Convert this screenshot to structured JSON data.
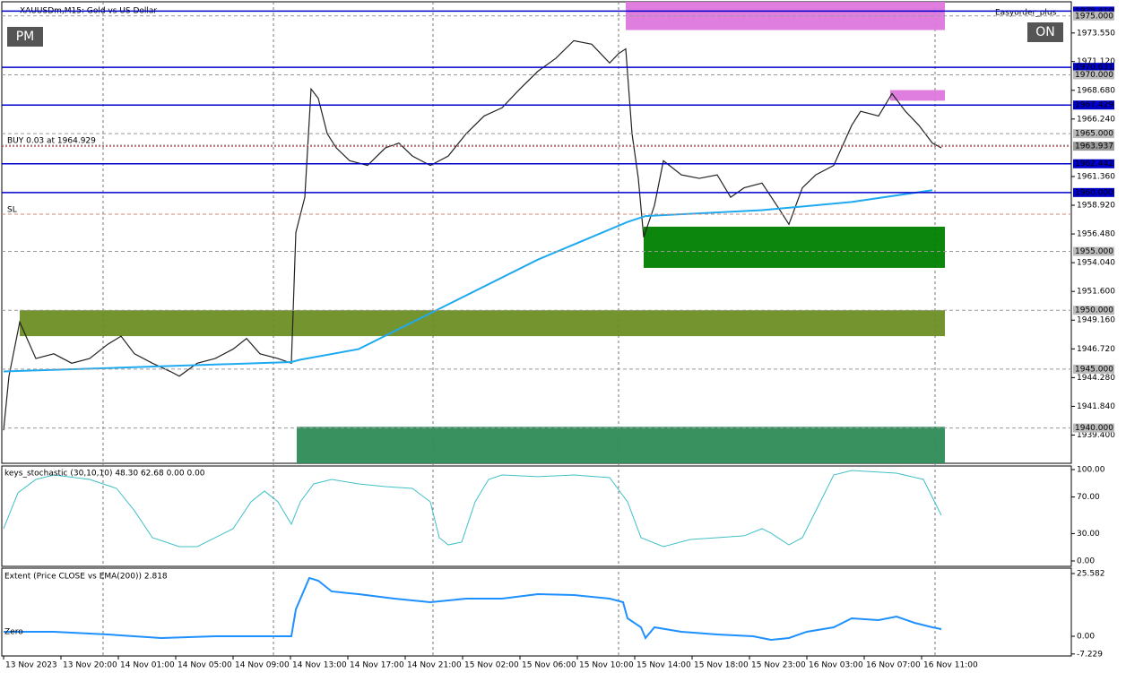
{
  "chart_data": {
    "type": "line",
    "title": "XAUUSDm,M15:  Gold vs US Dollar",
    "buttons": [
      "PM",
      "ON"
    ],
    "expert": "Easyorder_plus",
    "order_label": "BUY 0.03 at 1964.929",
    "sl_label": "SL",
    "xlim": [
      -0.5,
      297.75
    ],
    "xticks": [
      {
        "value": 0,
        "label": "13 Nov 2023"
      },
      {
        "value": 16,
        "label": "13 Nov 20:00"
      },
      {
        "value": 32,
        "label": "14 Nov 01:00"
      },
      {
        "value": 48,
        "label": "14 Nov 05:00"
      },
      {
        "value": 64,
        "label": "14 Nov 09:00"
      },
      {
        "value": 80,
        "label": "14 Nov 13:00"
      },
      {
        "value": 96,
        "label": "14 Nov 17:00"
      },
      {
        "value": 112,
        "label": "14 Nov 21:00"
      },
      {
        "value": 128,
        "label": "15 Nov 02:00"
      },
      {
        "value": 144,
        "label": "15 Nov 06:00"
      },
      {
        "value": 160,
        "label": "15 Nov 10:00"
      },
      {
        "value": 176,
        "label": "15 Nov 14:00"
      },
      {
        "value": 192,
        "label": "15 Nov 18:00"
      },
      {
        "value": 208,
        "label": "15 Nov 23:00"
      },
      {
        "value": 224,
        "label": "16 Nov 03:00"
      },
      {
        "value": 240,
        "label": "16 Nov 07:00"
      },
      {
        "value": 256,
        "label": "16 Nov 11:00"
      }
    ],
    "ylim": [
      1937.0,
      1976.2
    ],
    "yticks": [
      {
        "value": 1973.55,
        "label": "1973.550"
      },
      {
        "value": 1971.12,
        "label": "1971.120"
      },
      {
        "value": 1968.68,
        "label": "1968.680"
      },
      {
        "value": 1966.24,
        "label": "1966.240"
      },
      {
        "value": 1961.36,
        "label": "1961.360"
      },
      {
        "value": 1958.92,
        "label": "1958.920"
      },
      {
        "value": 1956.48,
        "label": "1956.480"
      },
      {
        "value": 1954.04,
        "label": "1954.040"
      },
      {
        "value": 1951.6,
        "label": "1951.600"
      },
      {
        "value": 1949.16,
        "label": "1949.160"
      },
      {
        "value": 1946.72,
        "label": "1946.720"
      },
      {
        "value": 1944.28,
        "label": "1944.280"
      },
      {
        "value": 1941.84,
        "label": "1941.840"
      },
      {
        "value": 1939.4,
        "label": "1939.400"
      }
    ],
    "levels": [
      {
        "value": 1975.41,
        "label": "1975.410",
        "kind": "solid"
      },
      {
        "value": 1975.0,
        "label": "1975.000",
        "kind": "dashed"
      },
      {
        "value": 1970.631,
        "label": "1970.631",
        "kind": "solid"
      },
      {
        "value": 1970.0,
        "label": "1970.000",
        "kind": "dashed"
      },
      {
        "value": 1967.429,
        "label": "1967.429",
        "kind": "solid"
      },
      {
        "value": 1965.0,
        "label": "1965.000",
        "kind": "dashed"
      },
      {
        "value": 1963.937,
        "label": "1963.937",
        "kind": "current"
      },
      {
        "value": 1962.442,
        "label": "1962.442",
        "kind": "solid"
      },
      {
        "value": 1960.0,
        "label": "1960.000",
        "kind": "solid"
      },
      {
        "value": 1955.0,
        "label": "1955.000",
        "kind": "dashed"
      },
      {
        "value": 1950.0,
        "label": "1950.000",
        "kind": "dashed"
      },
      {
        "value": 1945.0,
        "label": "1945.000",
        "kind": "dashed"
      },
      {
        "value": 1940.0,
        "label": "1940.000",
        "kind": "dashed"
      }
    ],
    "zones": [
      {
        "x": [
          173.5,
          262.5
        ],
        "range": [
          1973.8,
          1976.2
        ],
        "color": "#dd77dd"
      },
      {
        "x": [
          247.25,
          262.5
        ],
        "range": [
          1967.8,
          1968.7
        ],
        "color": "#dd77dd"
      },
      {
        "x": [
          178.5,
          262.5
        ],
        "range": [
          1953.6,
          1957.1
        ],
        "color": "#008000"
      },
      {
        "x": [
          4.5,
          262.5
        ],
        "range": [
          1947.8,
          1950.0
        ],
        "color": "#6b8e23"
      },
      {
        "x": [
          81.75,
          262.5
        ],
        "range": [
          1937.0,
          1940.1
        ],
        "color": "#2e8b57"
      }
    ],
    "series": [
      {
        "color": "#222222",
        "x": [
          0,
          1.5,
          4.5,
          9,
          14,
          19,
          24,
          29,
          32.75,
          36.5,
          41.5,
          46.5,
          49,
          54,
          59,
          64,
          67.75,
          71.5,
          76.5,
          80.25,
          81.5,
          84,
          85.75,
          87.75,
          90.25,
          92.75,
          96.5,
          101.5,
          106.5,
          110.25,
          114,
          119,
          124,
          129,
          134,
          139,
          144,
          149,
          154,
          159,
          164,
          169,
          171.5,
          173.5,
          175.25,
          177,
          178.5,
          181.5,
          184,
          189,
          194,
          199,
          202.75,
          206.5,
          211.5,
          216.5,
          219,
          222.75,
          226.5,
          231.5,
          236.5,
          239,
          244,
          247.75,
          251.5,
          255.25,
          259,
          261.5
        ],
        "values": [
          1939.8,
          1944.4,
          1949.0,
          1945.9,
          1946.3,
          1945.5,
          1945.9,
          1947.1,
          1947.8,
          1946.3,
          1945.5,
          1944.8,
          1944.4,
          1945.5,
          1945.9,
          1946.7,
          1947.6,
          1946.3,
          1945.9,
          1945.5,
          1956.6,
          1959.6,
          1968.8,
          1968.0,
          1965.0,
          1963.8,
          1962.7,
          1962.3,
          1963.8,
          1964.2,
          1963.1,
          1962.3,
          1963.1,
          1965.0,
          1966.5,
          1967.2,
          1968.8,
          1970.3,
          1971.4,
          1972.9,
          1972.6,
          1971.0,
          1971.8,
          1972.2,
          1965.0,
          1961.2,
          1956.2,
          1958.9,
          1962.7,
          1961.5,
          1961.2,
          1961.5,
          1959.6,
          1960.4,
          1960.8,
          1958.5,
          1957.3,
          1960.4,
          1961.5,
          1962.3,
          1965.7,
          1966.9,
          1966.5,
          1968.4,
          1966.9,
          1965.7,
          1964.2,
          1963.8
        ]
      },
      {
        "color": "#1eaaf0",
        "x": [
          0,
          80.25,
          82.75,
          99,
          124,
          149,
          174,
          179,
          211.5,
          236.5,
          259
        ],
        "values": [
          1944.8,
          1945.6,
          1945.8,
          1946.7,
          1950.5,
          1954.3,
          1957.5,
          1958.0,
          1958.5,
          1959.2,
          1960.2
        ]
      }
    ],
    "stochastic": {
      "title": "keys_stochastic (30,10,10) 48.30 62.68 0.00 0.00",
      "color": "#40c0c8",
      "ylim": [
        -5.9,
        103.9
      ],
      "yticks": [
        {
          "value": 100,
          "label": "100.00"
        },
        {
          "value": 70,
          "label": "70.00"
        },
        {
          "value": 30,
          "label": "30.00"
        },
        {
          "value": 0,
          "label": "0.00"
        }
      ],
      "x": [
        0,
        4,
        9,
        14,
        24,
        31.5,
        36.5,
        41.5,
        49,
        54,
        59,
        64,
        69,
        72.75,
        76.5,
        80.25,
        82.75,
        86.5,
        91.5,
        99,
        106.5,
        114,
        119,
        121.5,
        124,
        127.75,
        131.5,
        135.25,
        139,
        149,
        159,
        169,
        174,
        177.75,
        184,
        191.5,
        199,
        206.5,
        211.5,
        214,
        219,
        222.75,
        226.5,
        231.5,
        236.5,
        249,
        256.5,
        261.5
      ],
      "values": [
        35.3,
        74.5,
        89.2,
        94.1,
        89.2,
        79.4,
        54.9,
        25.5,
        15.7,
        15.7,
        25.5,
        35.3,
        64.7,
        76.5,
        64.7,
        40.2,
        64.7,
        84.3,
        89.2,
        84.3,
        81.4,
        79.4,
        64.7,
        25.5,
        17.6,
        20.6,
        64.7,
        89.2,
        94.1,
        92.2,
        94.1,
        91.2,
        64.7,
        25.5,
        15.7,
        23.5,
        25.5,
        27.5,
        35.3,
        30.4,
        17.6,
        25.5,
        54.9,
        94.1,
        99.0,
        96.1,
        89.2,
        50.0
      ]
    },
    "extent": {
      "title": "Extent (Price CLOSE vs EMA(200)) 2.818",
      "zero_label": "Zero",
      "color": "#1e90ff",
      "ylim": [
        -8.04,
        27.77
      ],
      "yticks": [
        {
          "value": 25.582,
          "label": "25.582"
        },
        {
          "value": 0,
          "label": "0.00"
        },
        {
          "value": -7.229,
          "label": "-7.229"
        }
      ],
      "x": [
        0,
        14,
        29,
        44,
        59,
        74,
        80.25,
        81.5,
        85.25,
        87.75,
        91.5,
        99,
        109,
        119,
        129,
        139,
        149,
        159,
        169,
        172.75,
        174,
        177.75,
        179,
        181.5,
        189,
        199,
        209,
        214,
        219,
        224,
        231.5,
        236.5,
        244,
        249,
        254,
        259,
        261.5
      ],
      "values": [
        1.83,
        1.83,
        0.73,
        -0.73,
        0,
        0,
        0,
        10.97,
        23.76,
        22.66,
        18.28,
        17.18,
        15.35,
        13.89,
        15.35,
        15.35,
        17.18,
        16.81,
        15.35,
        13.89,
        7.31,
        3.66,
        -0.73,
        3.66,
        1.83,
        0.73,
        0,
        -1.46,
        -0.73,
        1.83,
        3.66,
        7.31,
        6.58,
        8.04,
        5.48,
        3.66,
        2.92
      ]
    }
  }
}
